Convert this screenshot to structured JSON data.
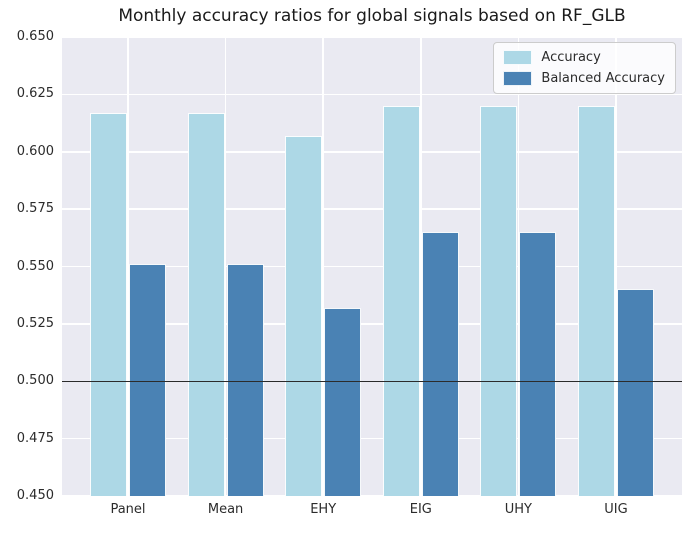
{
  "chart_data": {
    "type": "bar",
    "title": "Monthly accuracy ratios for global signals based on RF_GLB",
    "categories": [
      "Panel",
      "Mean",
      "EHY",
      "EIG",
      "UHY",
      "UIG"
    ],
    "series": [
      {
        "name": "Accuracy",
        "color": "#add8e6",
        "values": [
          0.617,
          0.617,
          0.607,
          0.62,
          0.62,
          0.62
        ]
      },
      {
        "name": "Balanced Accuracy",
        "color": "#4a82b4",
        "values": [
          0.551,
          0.551,
          0.532,
          0.565,
          0.565,
          0.54
        ]
      }
    ],
    "xlabel": "",
    "ylabel": "",
    "ylim": [
      0.45,
      0.65
    ],
    "yticks": [
      0.65,
      0.625,
      0.6,
      0.575,
      0.55,
      0.525,
      0.5,
      0.475,
      0.45
    ],
    "ytick_labels": [
      "0.650",
      "0.625",
      "0.600",
      "0.575",
      "0.550",
      "0.525",
      "0.500",
      "0.475",
      "0.450"
    ],
    "reference_line": 0.5,
    "grid": true,
    "legend": {
      "position": "upper right",
      "entries": [
        "Accuracy",
        "Balanced Accuracy"
      ]
    },
    "colors": {
      "plot_background": "#eaeaf2",
      "gridline": "#ffffff",
      "reference_line": "#2b2b2b",
      "accuracy_bar": "#add8e6",
      "balanced_accuracy_bar": "#4a82b4",
      "text": "#2b2b2b"
    }
  }
}
